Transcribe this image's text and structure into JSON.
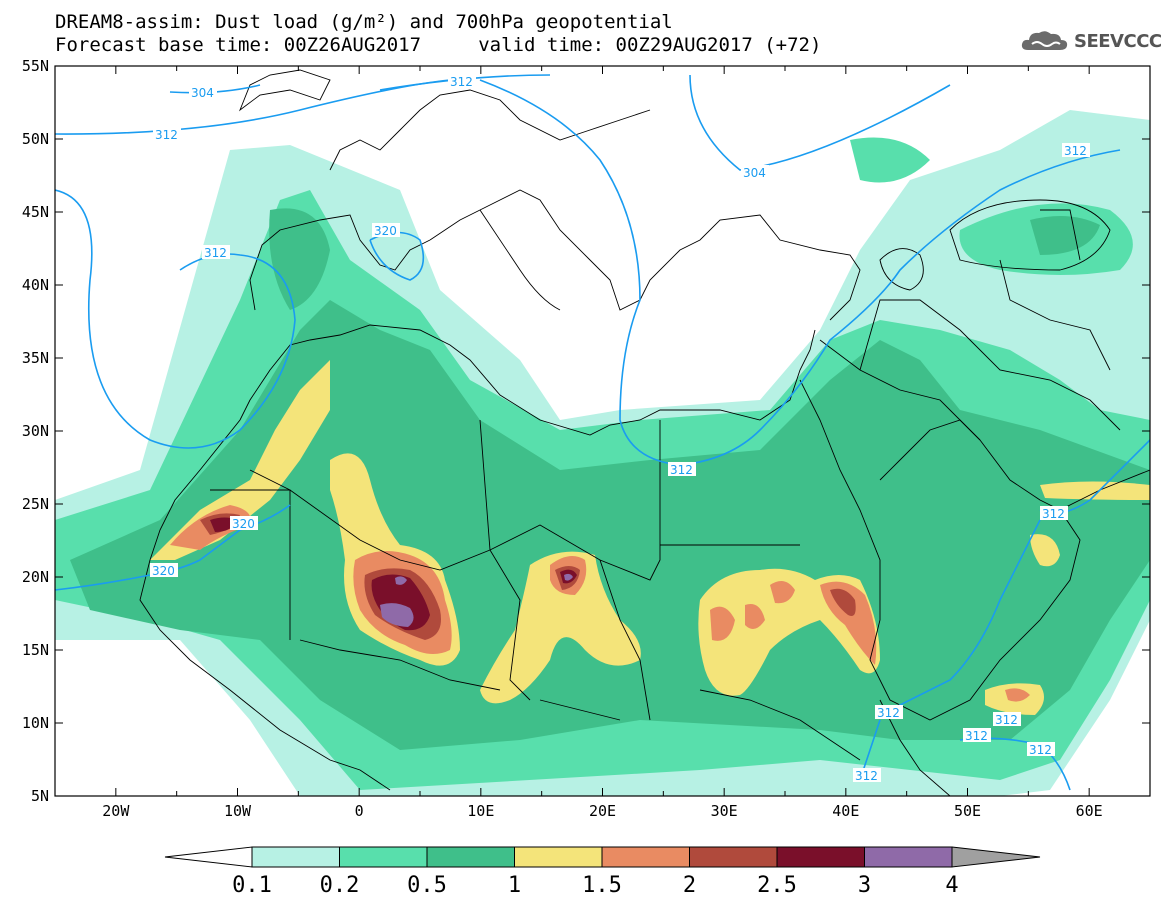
{
  "header": {
    "title_line1": "DREAM8-assim: Dust load (g/m²) and 700hPa geopotential",
    "title_line2": "Forecast base time: 00Z26AUG2017     valid time: 00Z29AUG2017 (+72)",
    "brand": "SEEVCCC"
  },
  "map": {
    "lon_labels": [
      "20W",
      "10W",
      "0",
      "10E",
      "20E",
      "30E",
      "40E",
      "50E",
      "60E"
    ],
    "lat_labels": [
      "55N",
      "50N",
      "45N",
      "40N",
      "35N",
      "30N",
      "25N",
      "20N",
      "15N",
      "10N",
      "5N"
    ],
    "lon_range": [
      -25,
      65
    ],
    "lat_range": [
      5,
      55
    ],
    "contour_labels": [
      "304",
      "312",
      "312",
      "312",
      "304",
      "312",
      "320",
      "312",
      "312",
      "320",
      "320",
      "312",
      "312",
      "312",
      "312",
      "312",
      "312"
    ]
  },
  "legend": {
    "labels": [
      "0.1",
      "0.2",
      "0.5",
      "1",
      "1.5",
      "2",
      "2.5",
      "3",
      "4"
    ],
    "colors": [
      "#b7f1e4",
      "#58dfac",
      "#3fbf8a",
      "#f4e47a",
      "#e98b62",
      "#b04a3c",
      "#7a0f2a",
      "#8f6aa8"
    ],
    "low_arrow_color": "#ffffff",
    "high_arrow_color": "#a0a0a0"
  },
  "colors": {
    "contour": "#1a9cf0",
    "ocean_land_background": "#ffffff"
  }
}
